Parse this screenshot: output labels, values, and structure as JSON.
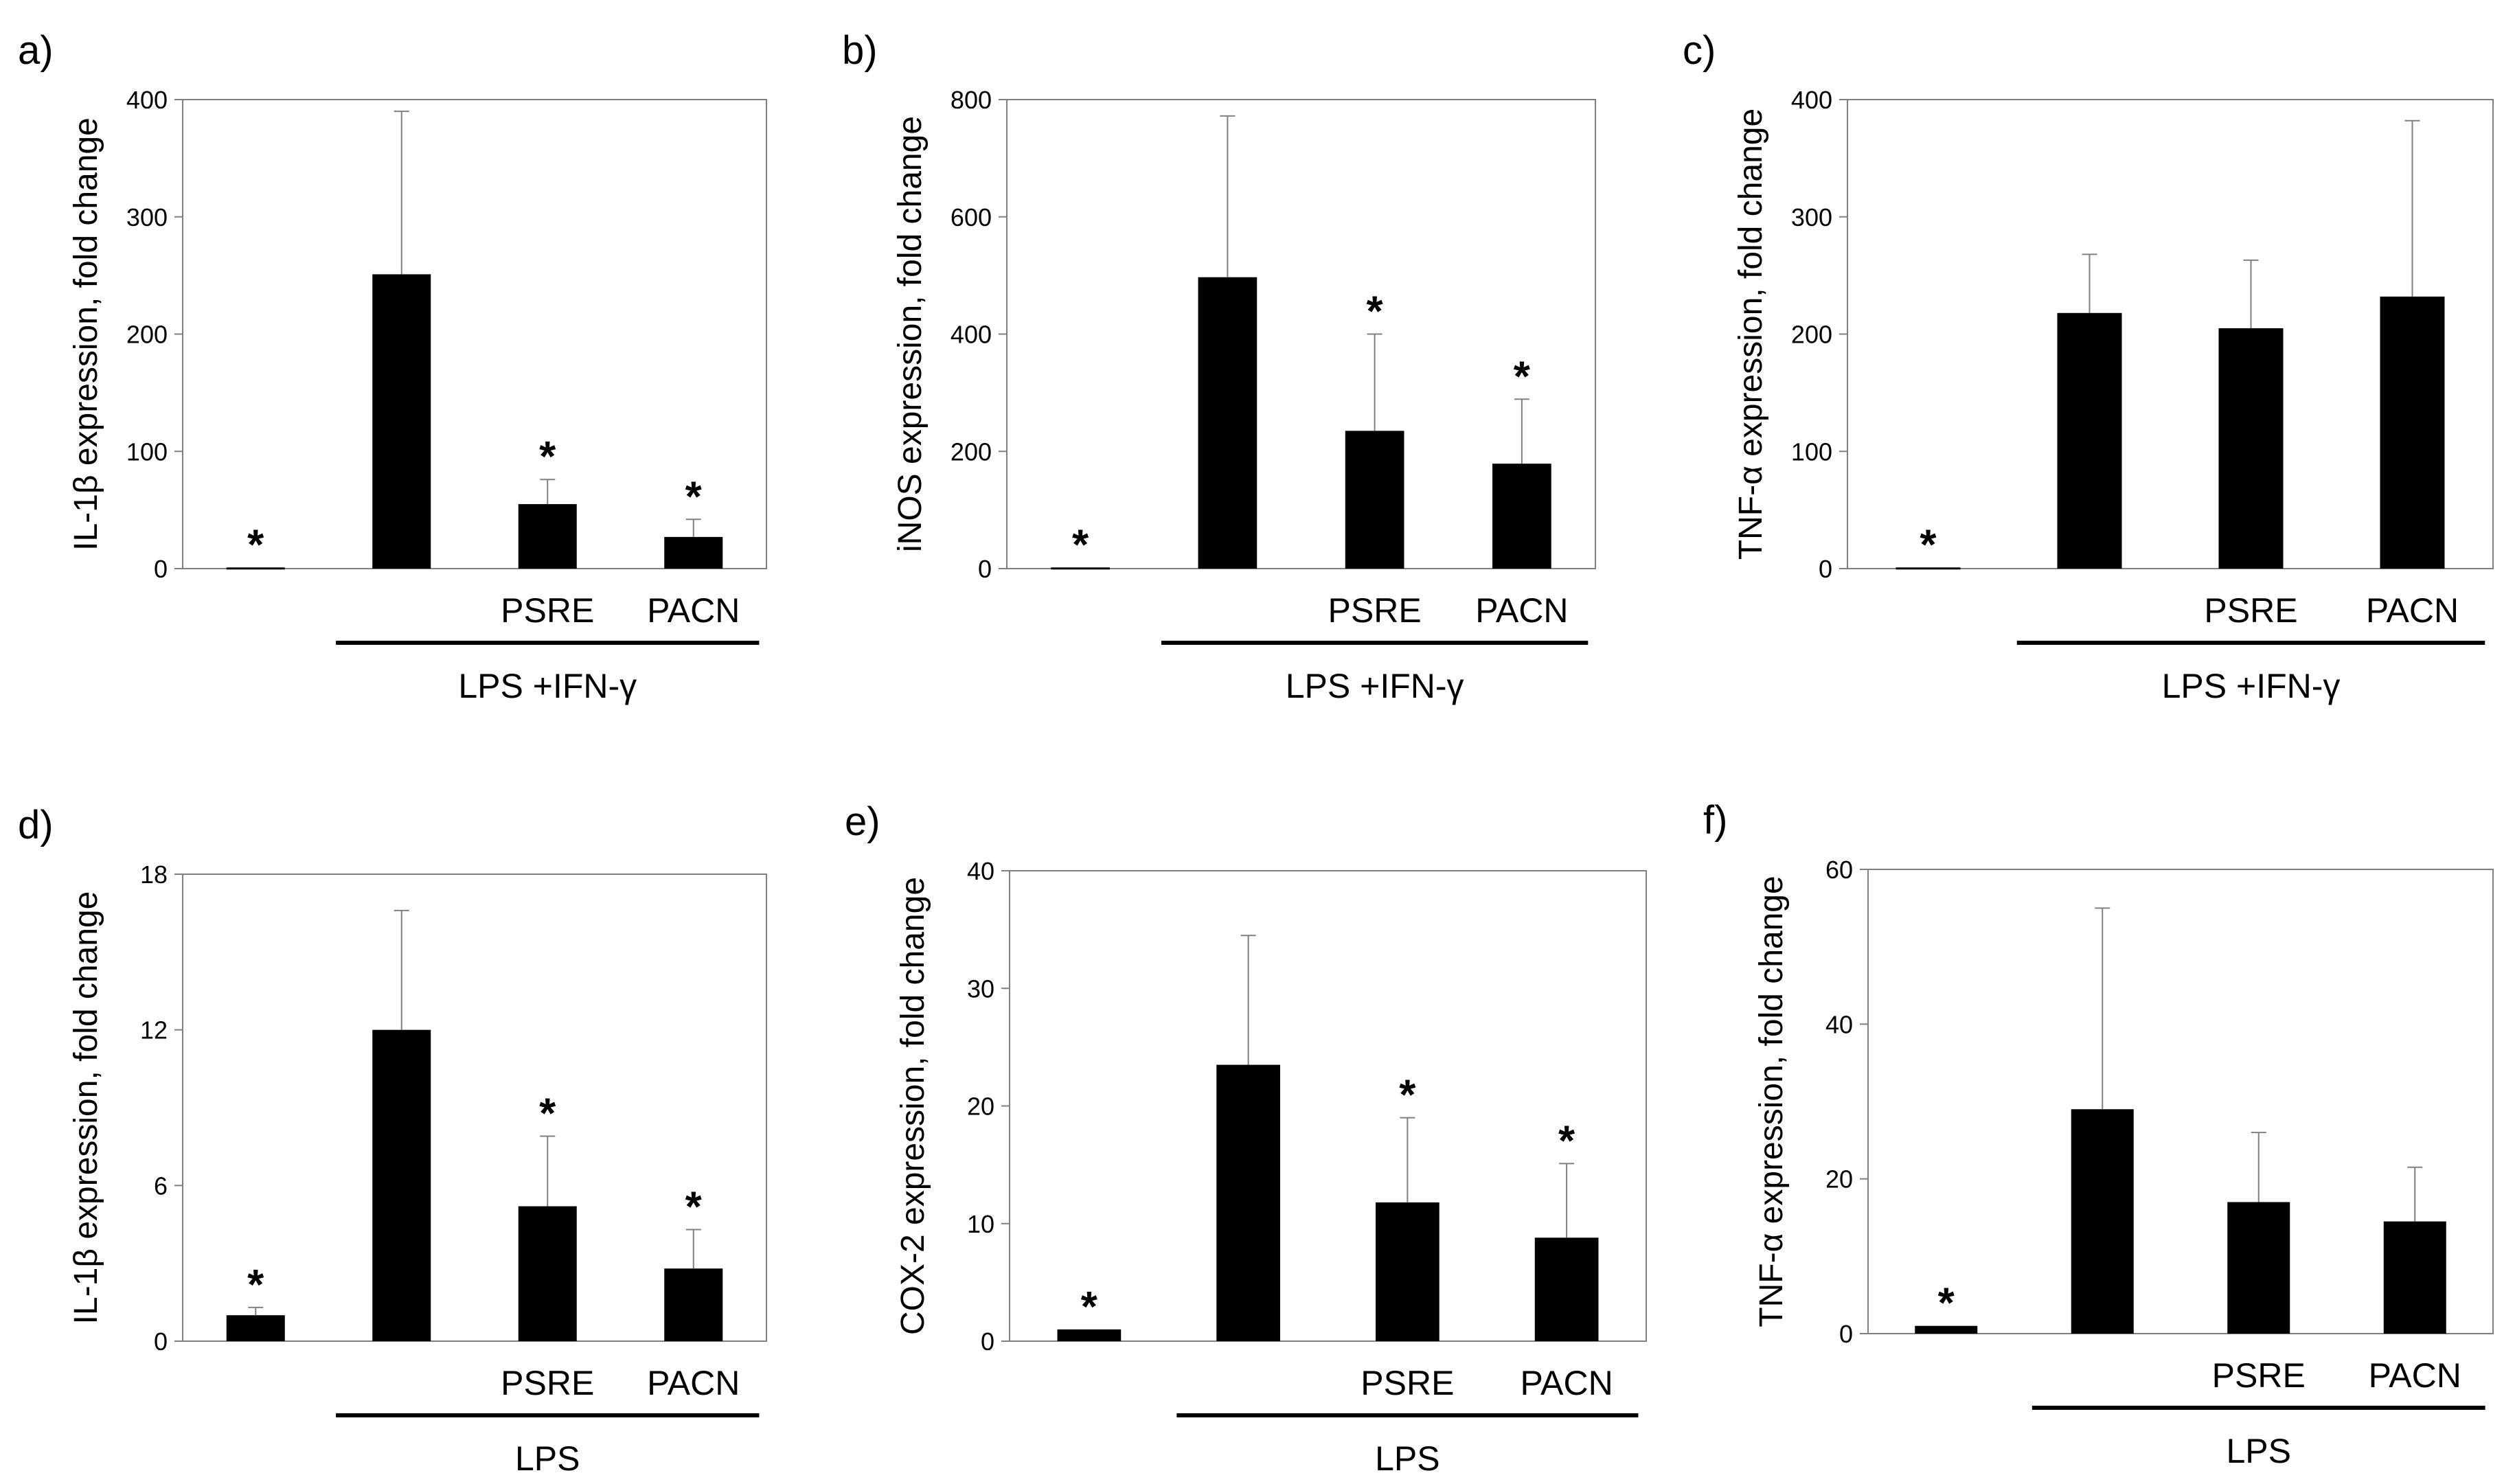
{
  "figure": {
    "bar_color": "#000000",
    "error_bar_color": "#808080",
    "axis_color": "#808080"
  },
  "chart_data": [
    {
      "type": "bar",
      "panel_label": "a)",
      "ylabel": "IL-1β expression, fold change",
      "ylim": [
        0,
        400
      ],
      "yticks": [
        0,
        100,
        200,
        300,
        400
      ],
      "categories": [
        "",
        "",
        "PSRE",
        "PACN"
      ],
      "values": [
        1,
        251,
        55,
        27
      ],
      "errors": [
        0,
        139,
        21,
        15
      ],
      "significance": [
        "*",
        "",
        "*",
        "*"
      ],
      "group_label": "LPS +IFN-γ"
    },
    {
      "type": "bar",
      "panel_label": "b)",
      "ylabel": "iNOS expression, fold change",
      "ylim": [
        0,
        800
      ],
      "yticks": [
        0,
        200,
        400,
        600,
        800
      ],
      "categories": [
        "",
        "",
        "PSRE",
        "PACN"
      ],
      "values": [
        2,
        497,
        235,
        179
      ],
      "errors": [
        0,
        275,
        165,
        110
      ],
      "significance": [
        "*",
        "",
        "*",
        "*"
      ],
      "group_label": "LPS +IFN-γ"
    },
    {
      "type": "bar",
      "panel_label": "c)",
      "ylabel": "TNF-α expression, fold change",
      "ylim": [
        0,
        400
      ],
      "yticks": [
        0,
        100,
        200,
        300,
        400
      ],
      "categories": [
        "",
        "",
        "PSRE",
        "PACN"
      ],
      "values": [
        1,
        218,
        205,
        232
      ],
      "errors": [
        0,
        50,
        58,
        150
      ],
      "significance": [
        "*",
        "",
        "",
        ""
      ],
      "group_label": "LPS +IFN-γ"
    },
    {
      "type": "bar",
      "panel_label": "d)",
      "ylabel": "IL-1β expression, fold change",
      "ylim": [
        0,
        18
      ],
      "yticks": [
        0,
        6,
        12,
        18
      ],
      "categories": [
        "",
        "",
        "PSRE",
        "PACN"
      ],
      "values": [
        1,
        12,
        5.2,
        2.8
      ],
      "errors": [
        0.3,
        4.6,
        2.7,
        1.5
      ],
      "significance": [
        "*",
        "",
        "*",
        "*"
      ],
      "group_label": "LPS"
    },
    {
      "type": "bar",
      "panel_label": "e)",
      "ylabel": "COX-2 expression, fold change",
      "ylim": [
        0,
        40
      ],
      "yticks": [
        0,
        10,
        20,
        30,
        40
      ],
      "categories": [
        "",
        "",
        "PSRE",
        "PACN"
      ],
      "values": [
        1,
        23.5,
        11.8,
        8.8
      ],
      "errors": [
        0,
        11,
        7.2,
        6.3
      ],
      "significance": [
        "*",
        "",
        "*",
        "*"
      ],
      "group_label": "LPS"
    },
    {
      "type": "bar",
      "panel_label": "f)",
      "ylabel": "TNF-α expression, fold change",
      "ylim": [
        0,
        60
      ],
      "yticks": [
        0,
        20,
        40,
        60
      ],
      "categories": [
        "",
        "",
        "PSRE",
        "PACN"
      ],
      "values": [
        1,
        29,
        17,
        14.5
      ],
      "errors": [
        0,
        26,
        9,
        7
      ],
      "significance": [
        "*",
        "",
        "",
        ""
      ],
      "group_label": "LPS"
    }
  ]
}
